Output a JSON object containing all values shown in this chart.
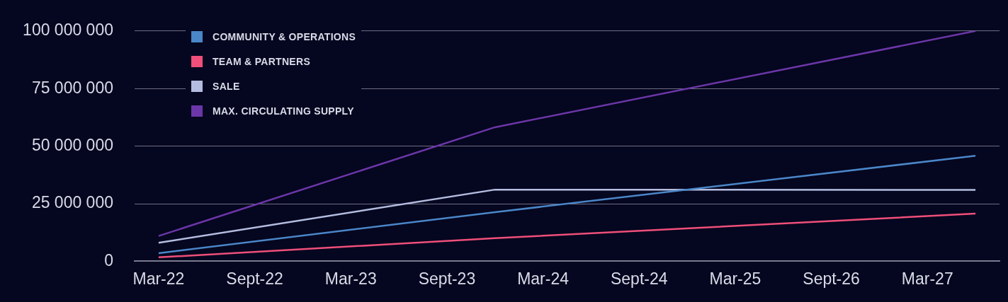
{
  "chart_data": {
    "type": "line",
    "categories": [
      "Mar-22",
      null,
      "Sept-22",
      null,
      "Mar-23",
      null,
      "Sept-23",
      null,
      "Mar-24",
      null,
      "Sept-24",
      null,
      "Mar-25",
      null,
      "Sept-26",
      null,
      "Mar-27",
      null
    ],
    "ylim": [
      0,
      100000000
    ],
    "yticks": [
      {
        "value": 0,
        "label": "0"
      },
      {
        "value": 25000000,
        "label": "25 000 000"
      },
      {
        "value": 50000000,
        "label": "50 000 000"
      },
      {
        "value": 75000000,
        "label": "75 000 000"
      },
      {
        "value": 100000000,
        "label": "100 000 000"
      }
    ],
    "series": [
      {
        "name": "COMMUNITY & OPERATIONS",
        "color": "#4a86c8",
        "values": [
          3500000,
          null,
          null,
          null,
          null,
          null,
          null,
          21300000,
          null,
          null,
          null,
          null,
          null,
          null,
          null,
          null,
          null,
          45800000
        ]
      },
      {
        "name": "TEAM & PARTNERS",
        "color": "#ef4f7a",
        "values": [
          1700000,
          null,
          null,
          null,
          null,
          null,
          null,
          10000000,
          null,
          null,
          null,
          null,
          null,
          null,
          null,
          null,
          null,
          20700000
        ]
      },
      {
        "name": "SALE",
        "color": "#b4bde0",
        "values": [
          8000000,
          null,
          null,
          null,
          null,
          null,
          null,
          31100000,
          null,
          null,
          null,
          null,
          null,
          null,
          null,
          null,
          null,
          31000000
        ]
      },
      {
        "name": "MAX. CIRCULATING SUPPLY",
        "color": "#6b36a8",
        "values": [
          11000000,
          null,
          null,
          null,
          null,
          null,
          null,
          58200000,
          null,
          null,
          null,
          null,
          null,
          null,
          null,
          null,
          null,
          100000000
        ]
      }
    ],
    "grid": "y",
    "legend": "top left",
    "marker": "none",
    "line_style": "solid"
  }
}
